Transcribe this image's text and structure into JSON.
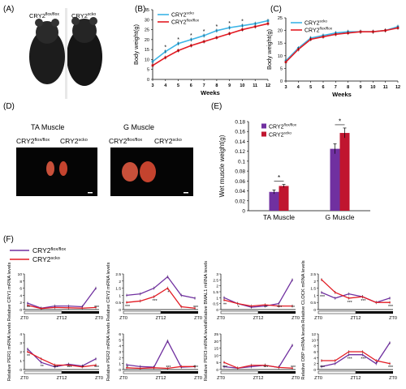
{
  "colors": {
    "flox": "#7030a0",
    "scko": "#e31b23",
    "c_scko": "#3cb4e6",
    "axis": "#000000"
  },
  "panels": {
    "A": "(A)",
    "B": "(B)",
    "C": "(C)",
    "D": "(D)",
    "E": "(E)",
    "F": "(F)"
  },
  "panel_a": {
    "label_flox": "CRY2",
    "sup_flox": "flox/flox",
    "label_scko": "CRY2",
    "sup_scko": "scko"
  },
  "panel_d": {
    "ta_title": "TA Muscle",
    "g_title": "G Muscle",
    "cry2": "CRY2",
    "sup_flox": "flox/flox",
    "sup_scko": "scko"
  },
  "legend": {
    "cry2": "CRY2",
    "flox": "flox/flox",
    "scko": "scko"
  },
  "sig_star": "*",
  "chart_data": [
    {
      "id": "B",
      "type": "line",
      "xlabel": "Weeks",
      "ylabel": "Body weight(g)",
      "x": [
        3,
        4,
        5,
        6,
        7,
        8,
        9,
        10,
        11,
        12
      ],
      "ylim": [
        0,
        35
      ],
      "yticks": [
        0,
        5,
        10,
        15,
        20,
        25,
        30,
        35
      ],
      "series": [
        {
          "name": "CRY2scko",
          "color": "#3cb4e6",
          "values": [
            9,
            14,
            18,
            20,
            22,
            24.5,
            26,
            27,
            28,
            29.5
          ]
        },
        {
          "name": "CRY2flox/flox",
          "color": "#e31b23",
          "values": [
            7,
            11,
            14.5,
            17,
            19,
            21,
            23,
            25,
            26.5,
            28
          ]
        }
      ],
      "significant_at": [
        4,
        5,
        6,
        7,
        8,
        9,
        10
      ],
      "legend": "top-left"
    },
    {
      "id": "C",
      "type": "line",
      "xlabel": "Weeks",
      "ylabel": "Body weight(g)",
      "x": [
        3,
        4,
        5,
        6,
        7,
        8,
        9,
        10,
        11,
        12
      ],
      "ylim": [
        0,
        25
      ],
      "yticks": [
        0,
        5,
        10,
        15,
        20,
        25
      ],
      "series": [
        {
          "name": "CRY2scko",
          "color": "#3cb4e6",
          "values": [
            8,
            13,
            17,
            18,
            19,
            19.5,
            19.5,
            19.5,
            20,
            21.5
          ]
        },
        {
          "name": "CRY2flox/flox",
          "color": "#e31b23",
          "values": [
            7.5,
            12.5,
            16.5,
            17.5,
            18.5,
            19,
            19.5,
            19.5,
            20,
            21
          ]
        }
      ],
      "legend": "top-left"
    },
    {
      "id": "E",
      "type": "bar",
      "ylabel": "Wet muscle weight(g)",
      "categories": [
        "TA Muscle",
        "G Muscle"
      ],
      "ylim": [
        0,
        0.18
      ],
      "yticks": [
        0,
        0.02,
        0.04,
        0.06,
        0.08,
        0.1,
        0.12,
        0.14,
        0.16,
        0.18
      ],
      "series": [
        {
          "name": "CRY2flox/flox",
          "color": "#7030a0",
          "values": [
            0.038,
            0.125
          ],
          "errors": [
            0.004,
            0.01
          ]
        },
        {
          "name": "CRY2scko",
          "color": "#c0152f",
          "values": [
            0.05,
            0.157
          ],
          "errors": [
            0.003,
            0.01
          ]
        }
      ],
      "legend": "top-left"
    },
    {
      "id": "F",
      "type": "line",
      "series_names": [
        "CRY2flox/flox",
        "CRY2scko"
      ],
      "xtick_labels": [
        "ZT0",
        "ZT12",
        "ZT0"
      ],
      "subplots": [
        {
          "ylabel": "Relative CRY1 mRNA levels",
          "ylim": [
            0,
            10
          ],
          "yticks": [
            0,
            2,
            4,
            6,
            8,
            10
          ],
          "flox": [
            1.8,
            0.4,
            1,
            1,
            0.8,
            6
          ],
          "scko": [
            1.2,
            0.3,
            0.6,
            0.5,
            0.4,
            0.6
          ],
          "stars": [
            "**",
            "***"
          ]
        },
        {
          "ylabel": "Relative CRY2 mRNA levels",
          "ylim": [
            0,
            2.5
          ],
          "yticks": [
            0,
            0.5,
            1,
            1.5,
            2,
            2.5
          ],
          "flox": [
            1,
            1.1,
            1.5,
            2.3,
            1,
            0.8
          ],
          "scko": [
            0.5,
            0.6,
            0.9,
            1.5,
            0.2,
            0.1
          ],
          "stars": [
            "***",
            "***",
            "*",
            "***"
          ]
        },
        {
          "ylabel": "Relative BMAL1 mRNA levels",
          "ylim": [
            0,
            3
          ],
          "yticks": [
            0,
            0.5,
            1,
            1.5,
            2,
            2.5,
            3
          ],
          "flox": [
            1,
            0.5,
            0.2,
            0.3,
            0.5,
            2.5
          ],
          "scko": [
            0.8,
            0.5,
            0.3,
            0.4,
            0.3,
            0.3
          ],
          "stars": [
            "**",
            "*",
            "**",
            "***",
            "**"
          ]
        },
        {
          "ylabel": "Relative CLOCK mRNA levels",
          "ylim": [
            0,
            2.5
          ],
          "yticks": [
            0,
            0.5,
            1,
            1.5,
            2,
            2.5
          ],
          "flox": [
            1.2,
            0.8,
            1.1,
            0.9,
            0.5,
            0.8
          ],
          "scko": [
            2.1,
            1.2,
            0.8,
            0.9,
            0.5,
            0.5
          ],
          "stars": [
            "***",
            "***",
            "***",
            "***"
          ]
        },
        {
          "ylabel": "Relative PER1 mRNA levels",
          "ylim": [
            0,
            4
          ],
          "yticks": [
            0,
            1,
            2,
            3,
            4
          ],
          "flox": [
            2.3,
            0.8,
            0.3,
            0.6,
            0.4,
            1.2
          ],
          "scko": [
            2,
            1.2,
            0.5,
            0.5,
            0.3,
            0.5
          ],
          "stars": [
            "**",
            "**",
            "***",
            "***",
            "*",
            "***"
          ]
        },
        {
          "ylabel": "Relative PER2 mRNA levels",
          "ylim": [
            0,
            6
          ],
          "yticks": [
            0,
            1,
            2,
            3,
            4,
            5,
            6
          ],
          "flox": [
            0.8,
            0.5,
            0.4,
            4.8,
            0.4,
            0.5
          ],
          "scko": [
            0.3,
            0.2,
            0.3,
            0.2,
            0.5,
            0.5
          ],
          "stars": [
            "*",
            "***",
            "***"
          ]
        },
        {
          "ylabel": "Relative PER3 mRNA levels",
          "ylim": [
            0,
            25
          ],
          "yticks": [
            0,
            5,
            10,
            15,
            20,
            25
          ],
          "flox": [
            2,
            1,
            2,
            3,
            1.5,
            17
          ],
          "scko": [
            5,
            1,
            3,
            3,
            1.5,
            1
          ],
          "stars": [
            "***",
            "***",
            "***"
          ]
        },
        {
          "ylabel": "Relative DBP mRNA levels",
          "ylim": [
            0,
            12
          ],
          "yticks": [
            0,
            2,
            4,
            6,
            8,
            10,
            12
          ],
          "flox": [
            1,
            2,
            5,
            5,
            2,
            9
          ],
          "scko": [
            3,
            3,
            6,
            6,
            3,
            2
          ],
          "stars": [
            "***",
            "***",
            "***",
            "***"
          ]
        }
      ]
    }
  ]
}
